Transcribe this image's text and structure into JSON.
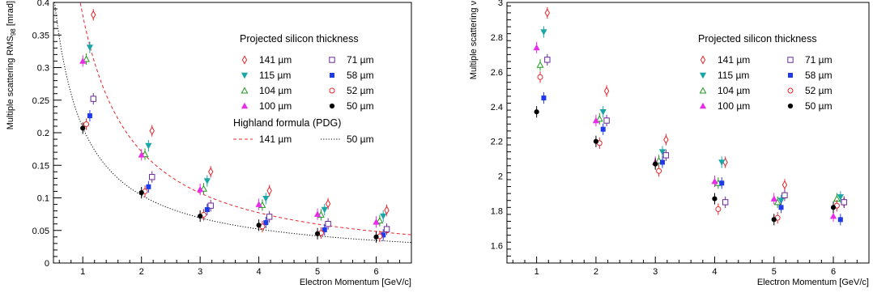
{
  "chart_data": [
    {
      "type": "scatter",
      "xlabel": "Electron Momentum [GeV/c]",
      "ylabel": "Multiple scattering RMS",
      "ylabel_sub": "98",
      "ylabel_unit": " [mrad]",
      "xlim": [
        0.5,
        6.6
      ],
      "ylim": [
        0,
        0.4
      ],
      "xticks": [
        "1",
        "2",
        "3",
        "4",
        "5",
        "6"
      ],
      "yticks": [
        "0",
        "0.05",
        "0.1",
        "0.15",
        "0.2",
        "0.25",
        "0.3",
        "0.35",
        "0.4"
      ],
      "legend_title": "Projected silicon thickness",
      "legend_placement": "top-right",
      "curves_title": "Highland formula (PDG)",
      "curves": [
        {
          "name": "141 µm",
          "style": "dashed",
          "color": "#e8252a",
          "a": 0.38,
          "p": 1.15
        },
        {
          "name": "50 µm",
          "style": "dotted",
          "color": "#000000",
          "a": 0.208,
          "p": 1.0
        }
      ],
      "series": [
        {
          "name": "141 µm",
          "marker": "diamond-open",
          "color": "#e8252a",
          "dx": 0.18,
          "points": [
            [
              1,
              0.381
            ],
            [
              2,
              0.203
            ],
            [
              3,
              0.14
            ],
            [
              4,
              0.111
            ],
            [
              5,
              0.091
            ],
            [
              6,
              0.081
            ]
          ]
        },
        {
          "name": "115 µm",
          "marker": "triangle-down",
          "color": "#1aa6a6",
          "dx": 0.12,
          "points": [
            [
              1,
              0.331
            ],
            [
              2,
              0.18
            ],
            [
              3,
              0.126
            ],
            [
              4,
              0.099
            ],
            [
              5,
              0.082
            ],
            [
              6,
              0.072
            ]
          ]
        },
        {
          "name": "104 µm",
          "marker": "triangle-up-open",
          "color": "#1f9a1f",
          "dx": 0.06,
          "points": [
            [
              1,
              0.313
            ],
            [
              2,
              0.167
            ],
            [
              3,
              0.114
            ],
            [
              4,
              0.089
            ],
            [
              5,
              0.074
            ],
            [
              6,
              0.065
            ]
          ]
        },
        {
          "name": "100 µm",
          "marker": "triangle-up",
          "color": "#e82ce8",
          "dx": 0.0,
          "points": [
            [
              1,
              0.31
            ],
            [
              2,
              0.166
            ],
            [
              3,
              0.113
            ],
            [
              4,
              0.09
            ],
            [
              5,
              0.075
            ],
            [
              6,
              0.063
            ]
          ]
        },
        {
          "name": "71 µm",
          "marker": "square-open",
          "color": "#6a2a9a",
          "dx": 0.18,
          "points": [
            [
              1,
              0.252
            ],
            [
              2,
              0.132
            ],
            [
              3,
              0.088
            ],
            [
              4,
              0.071
            ],
            [
              5,
              0.06
            ],
            [
              6,
              0.052
            ]
          ]
        },
        {
          "name": "58 µm",
          "marker": "square",
          "color": "#1f3ae8",
          "dx": 0.12,
          "points": [
            [
              1,
              0.226
            ],
            [
              2,
              0.117
            ],
            [
              3,
              0.082
            ],
            [
              4,
              0.062
            ],
            [
              5,
              0.051
            ],
            [
              6,
              0.043
            ]
          ]
        },
        {
          "name": "52 µm",
          "marker": "circle-open",
          "color": "#e8252a",
          "dx": 0.06,
          "points": [
            [
              1,
              0.213
            ],
            [
              2,
              0.11
            ],
            [
              3,
              0.074
            ],
            [
              4,
              0.056
            ],
            [
              5,
              0.046
            ],
            [
              6,
              0.041
            ]
          ]
        },
        {
          "name": "50 µm",
          "marker": "circle",
          "color": "#000000",
          "dx": 0.0,
          "points": [
            [
              1,
              0.207
            ],
            [
              2,
              0.108
            ],
            [
              3,
              0.072
            ],
            [
              4,
              0.058
            ],
            [
              5,
              0.045
            ],
            [
              6,
              0.04
            ]
          ]
        }
      ]
    },
    {
      "type": "scatter",
      "xlabel": "Electron Momentum [GeV/c]",
      "ylabel": "Multiple scattering ν",
      "xlim": [
        0.5,
        6.6
      ],
      "ylim": [
        1.5,
        3.0
      ],
      "xticks": [
        "1",
        "2",
        "3",
        "4",
        "5",
        "6"
      ],
      "yticks": [
        "1.6",
        "1.8",
        "2",
        "2.2",
        "2.4",
        "2.6",
        "2.8",
        "3"
      ],
      "legend_title": "Projected silicon thickness",
      "legend_placement": "top-right",
      "series": [
        {
          "name": "141 µm",
          "marker": "diamond-open",
          "color": "#e8252a",
          "dx": 0.18,
          "points": [
            [
              1,
              2.94
            ],
            [
              2,
              2.49
            ],
            [
              3,
              2.21
            ],
            [
              4,
              2.08
            ],
            [
              5,
              1.95
            ],
            [
              6,
              1.85
            ]
          ]
        },
        {
          "name": "115 µm",
          "marker": "triangle-down",
          "color": "#1aa6a6",
          "dx": 0.12,
          "points": [
            [
              1,
              2.83
            ],
            [
              2,
              2.37
            ],
            [
              3,
              2.14
            ],
            [
              4,
              2.08
            ],
            [
              5,
              1.86
            ],
            [
              6,
              1.88
            ]
          ]
        },
        {
          "name": "104 µm",
          "marker": "triangle-up-open",
          "color": "#1f9a1f",
          "dx": 0.06,
          "points": [
            [
              1,
              2.64
            ],
            [
              2,
              2.33
            ],
            [
              3,
              2.09
            ],
            [
              4,
              1.96
            ],
            [
              5,
              1.85
            ],
            [
              6,
              1.87
            ]
          ]
        },
        {
          "name": "100 µm",
          "marker": "triangle-up",
          "color": "#e82ce8",
          "dx": 0.0,
          "points": [
            [
              1,
              2.74
            ],
            [
              2,
              2.32
            ],
            [
              3,
              2.08
            ],
            [
              4,
              1.97
            ],
            [
              5,
              1.87
            ],
            [
              6,
              1.77
            ]
          ]
        },
        {
          "name": "71 µm",
          "marker": "square-open",
          "color": "#6a2a9a",
          "dx": 0.18,
          "points": [
            [
              1,
              2.67
            ],
            [
              2,
              2.32
            ],
            [
              3,
              2.12
            ],
            [
              4,
              1.85
            ],
            [
              5,
              1.89
            ],
            [
              6,
              1.85
            ]
          ]
        },
        {
          "name": "58 µm",
          "marker": "square",
          "color": "#1f3ae8",
          "dx": 0.12,
          "points": [
            [
              1,
              2.45
            ],
            [
              2,
              2.27
            ],
            [
              3,
              2.08
            ],
            [
              4,
              1.96
            ],
            [
              5,
              1.82
            ],
            [
              6,
              1.75
            ]
          ]
        },
        {
          "name": "52 µm",
          "marker": "circle-open",
          "color": "#e8252a",
          "dx": 0.06,
          "points": [
            [
              1,
              2.57
            ],
            [
              2,
              2.19
            ],
            [
              3,
              2.03
            ],
            [
              4,
              1.81
            ],
            [
              5,
              1.76
            ],
            [
              6,
              1.83
            ]
          ]
        },
        {
          "name": "50 µm",
          "marker": "circle",
          "color": "#000000",
          "dx": 0.0,
          "points": [
            [
              1,
              2.37
            ],
            [
              2,
              2.2
            ],
            [
              3,
              2.07
            ],
            [
              4,
              1.87
            ],
            [
              5,
              1.75
            ],
            [
              6,
              1.82
            ]
          ]
        }
      ]
    }
  ]
}
